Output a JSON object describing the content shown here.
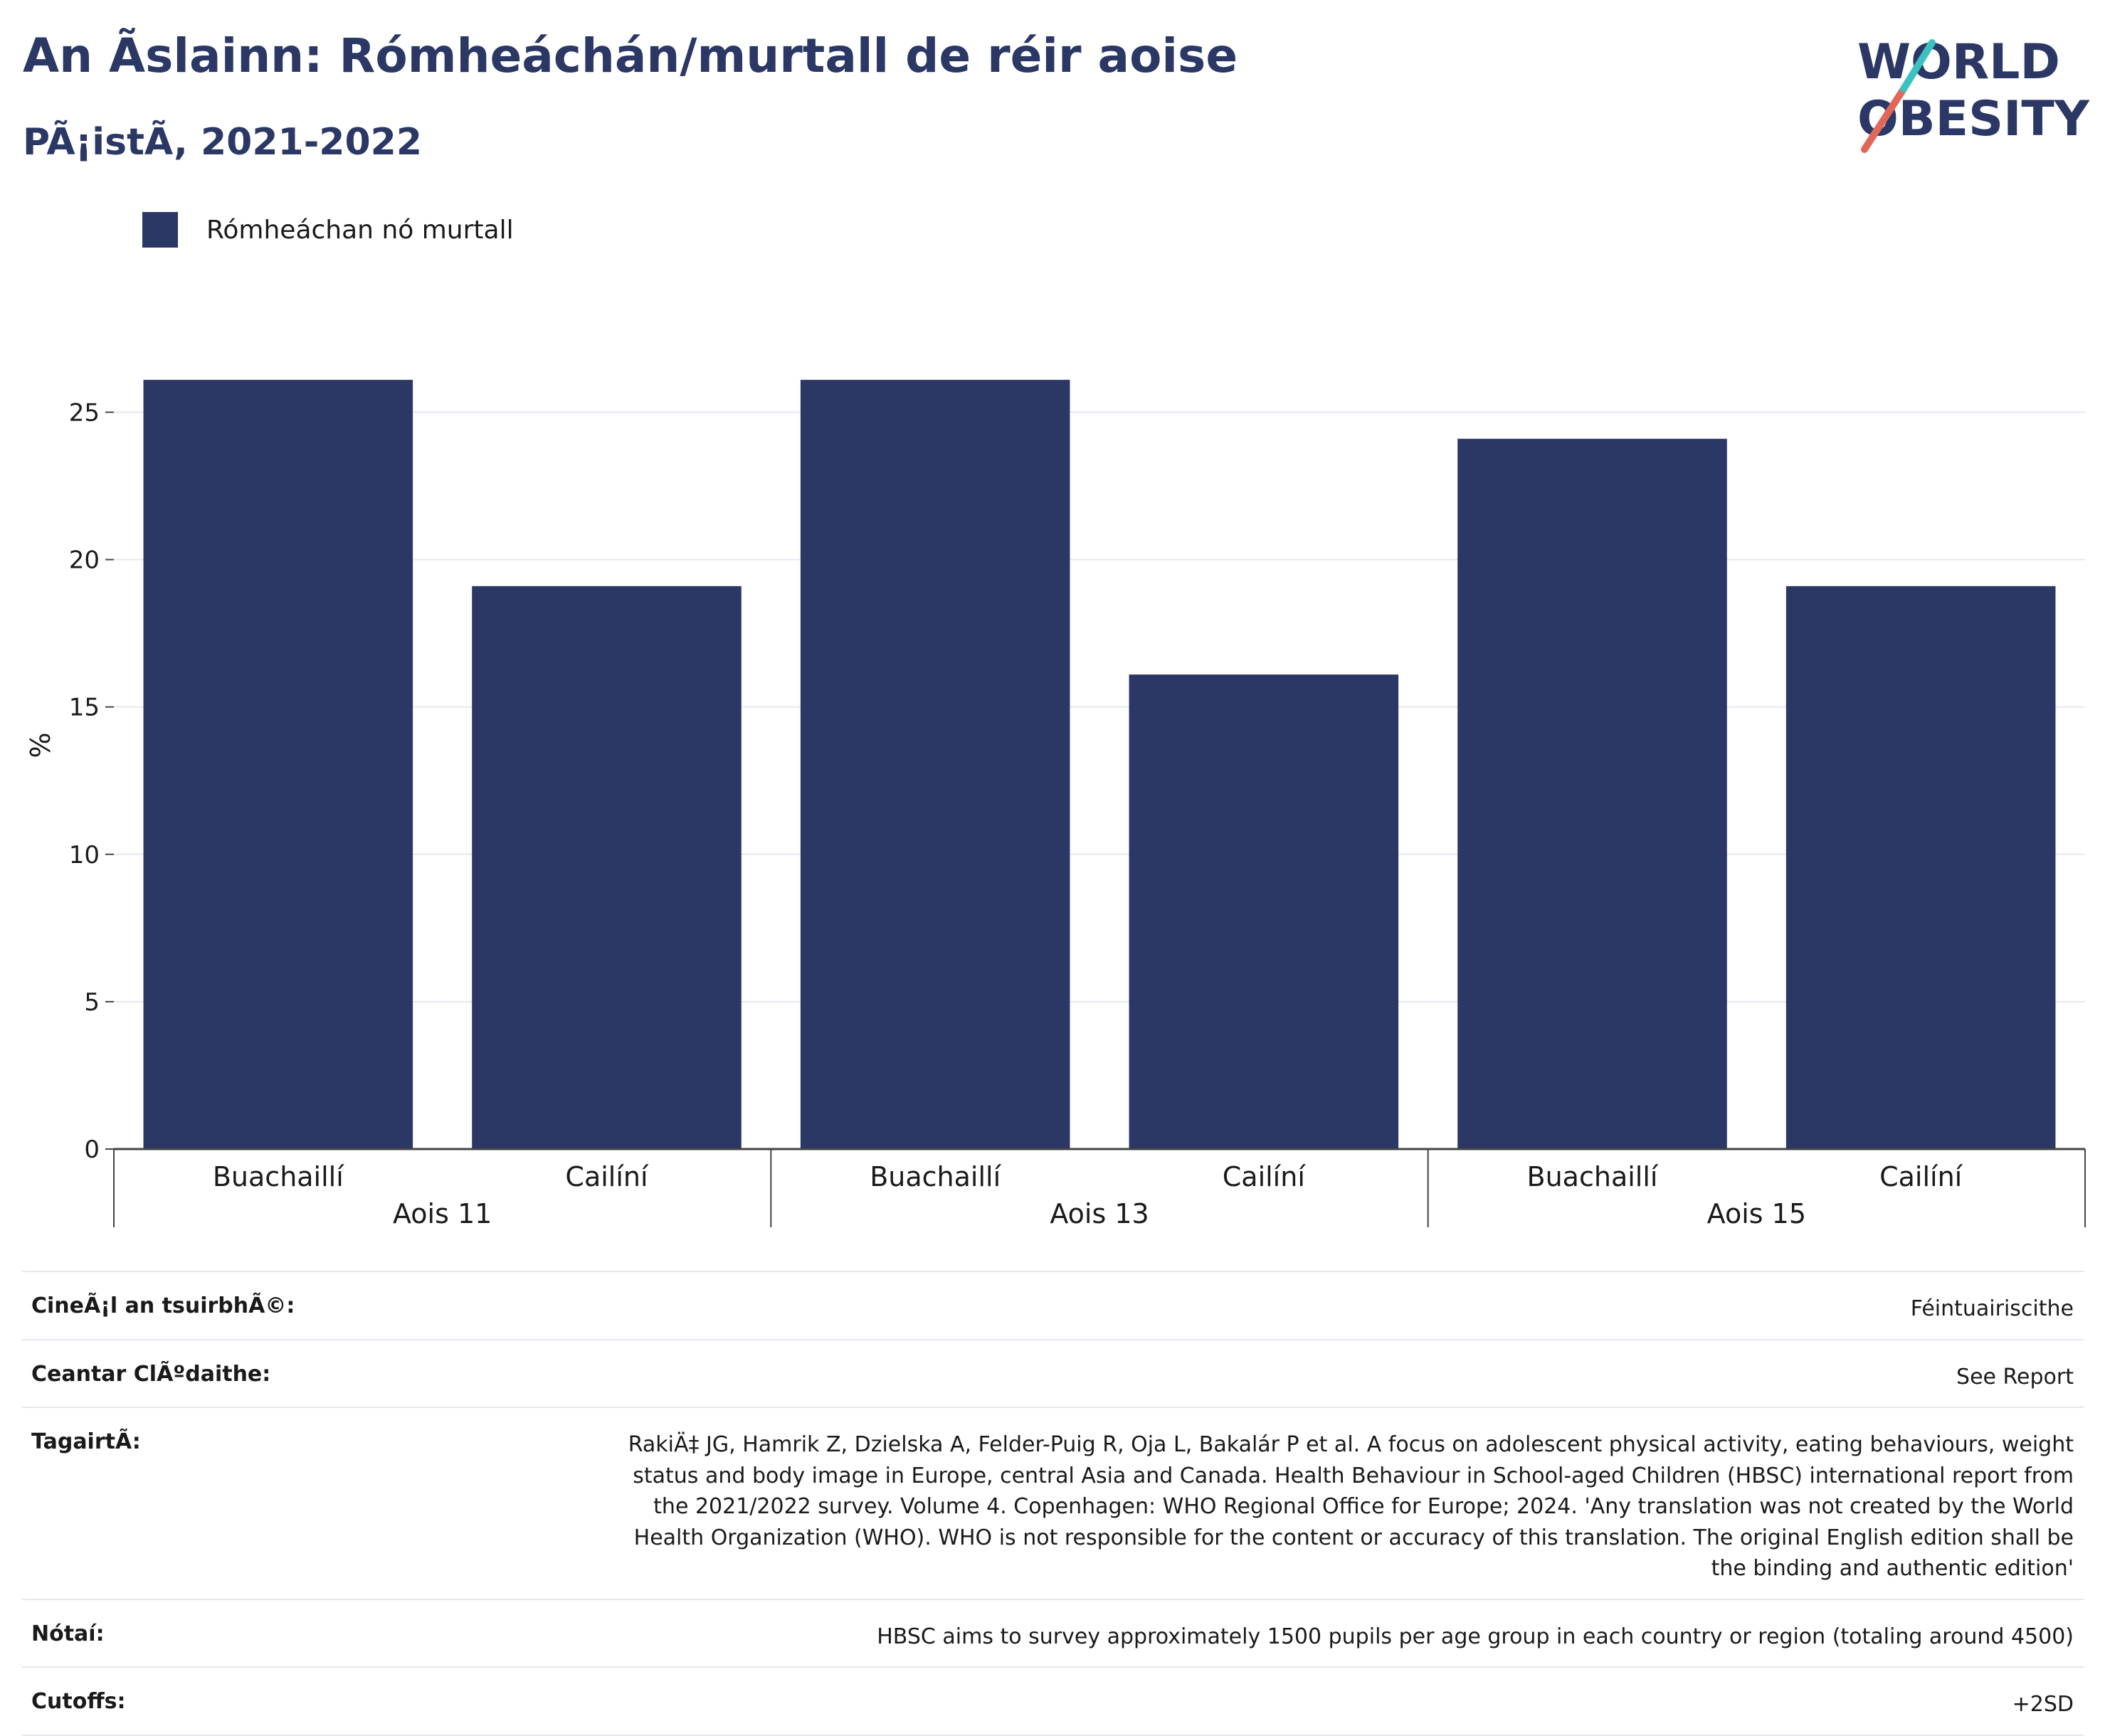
{
  "header": {
    "title": "An Ãslainn: Rómheáchán/murtall de réir aoise",
    "subtitle": "PÃ¡istÃ, 2021-2022"
  },
  "logo": {
    "line1": "WORLD",
    "line2": "OBESITY",
    "colors": [
      "#2b3764",
      "#e0685a",
      "#3cc1c1"
    ]
  },
  "chart_data": {
    "type": "bar",
    "categories": [
      {
        "group": "Aois 11",
        "label": "Buachaillí"
      },
      {
        "group": "Aois 11",
        "label": "Cailíní"
      },
      {
        "group": "Aois 13",
        "label": "Buachaillí"
      },
      {
        "group": "Aois 13",
        "label": "Cailíní"
      },
      {
        "group": "Aois 15",
        "label": "Buachaillí"
      },
      {
        "group": "Aois 15",
        "label": "Cailíní"
      }
    ],
    "groups": [
      "Aois 11",
      "Aois 13",
      "Aois 15"
    ],
    "series": [
      {
        "name": "Rómheáchan nó murtall",
        "values": [
          26.1,
          19.1,
          26.1,
          16.1,
          24.1,
          19.1
        ],
        "color": "#2b3764"
      }
    ],
    "ylabel": "%",
    "ylim": [
      0,
      27.4
    ],
    "yticks": [
      0,
      5,
      10,
      15,
      20,
      25
    ],
    "grid": true,
    "legend_position": "top-left"
  },
  "info": [
    {
      "label": "CineÃ¡l an tsuirbhÃ©:",
      "value": "Féintuairiscithe"
    },
    {
      "label": "Ceantar ClÃºdaithe:",
      "value": "See Report"
    },
    {
      "label": "TagairtÃ:",
      "value": "RakiÄ‡ JG, Hamrik Z, Dzielska A, Felder-Puig R, Oja L, Bakalár P et al. A focus on adolescent physical activity, eating behaviours, weight status and body image in Europe, central Asia and Canada. Health Behaviour in School-aged Children (HBSC) international report from the 2021/2022 survey. Volume 4. Copenhagen: WHO Regional Office for Europe; 2024. 'Any translation was not created by the World Health Organization (WHO). WHO is not responsible for the content or accuracy of this translation. The original English edition shall be the binding and authentic edition'"
    },
    {
      "label": "Nótaí:",
      "value": "HBSC aims to survey approximately 1500 pupils per age group in each country or region (totaling around 4500)"
    },
    {
      "label": "Cutoffs:",
      "value": "+2SD"
    }
  ]
}
